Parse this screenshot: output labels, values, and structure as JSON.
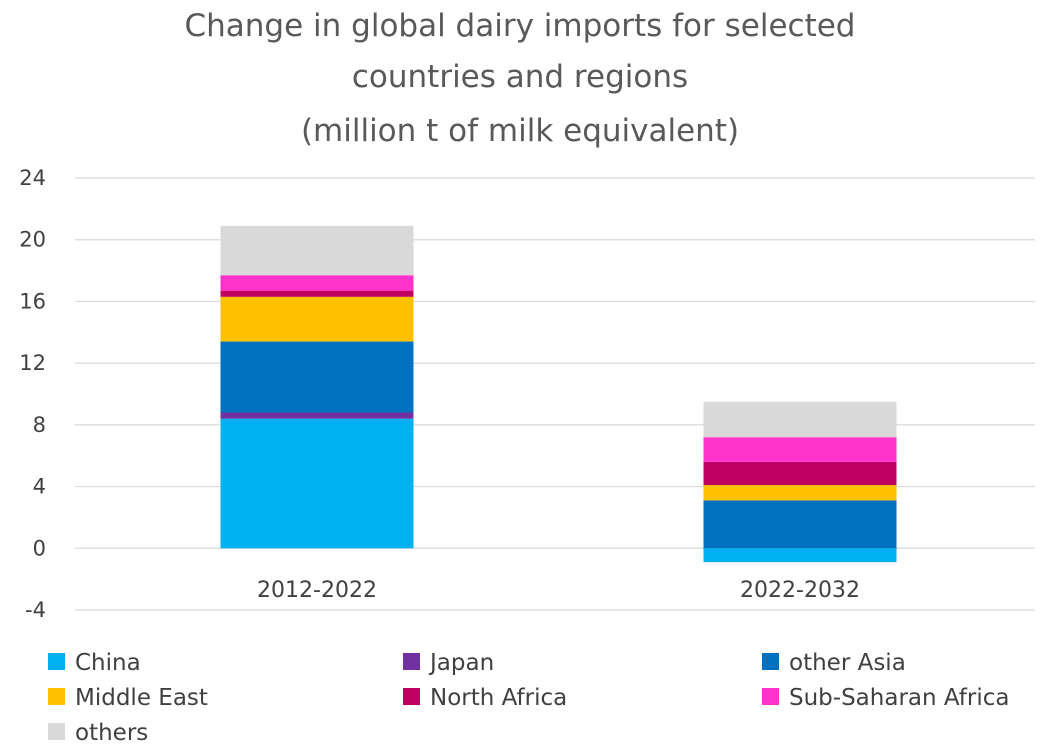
{
  "chart_data": {
    "type": "bar",
    "stacked": true,
    "title_lines": [
      "Change in global dairy imports for selected",
      "countries and regions",
      "(million t of milk equivalent)"
    ],
    "categories": [
      "2012-2022",
      "2022-2032"
    ],
    "ylim": [
      -4,
      24
    ],
    "yticks": [
      -4,
      0,
      4,
      8,
      12,
      16,
      20,
      24
    ],
    "grid": true,
    "legend_position": "bottom",
    "series": [
      {
        "name": "China",
        "color": "#00B0F0",
        "values": [
          8.4,
          -0.9
        ]
      },
      {
        "name": "Japan",
        "color": "#7030A0",
        "values": [
          0.4,
          0.0
        ]
      },
      {
        "name": "other Asia",
        "color": "#0070C0",
        "values": [
          4.6,
          3.1
        ]
      },
      {
        "name": "Middle East",
        "color": "#FFC000",
        "values": [
          2.9,
          1.0
        ]
      },
      {
        "name": "North Africa",
        "color": "#C00060",
        "values": [
          0.4,
          1.5
        ]
      },
      {
        "name": "Sub-Saharan Africa",
        "color": "#FF33CC",
        "values": [
          1.0,
          1.6
        ]
      },
      {
        "name": "others",
        "color": "#D9D9D9",
        "values": [
          3.2,
          2.3
        ]
      }
    ]
  }
}
